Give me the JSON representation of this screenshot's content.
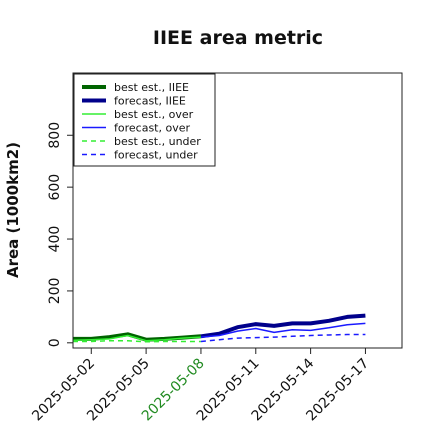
{
  "chart_data": {
    "type": "line",
    "title": "IIEE area metric",
    "ylabel": "Area (1000km2)",
    "xlabel": "",
    "ylim": [
      -20,
      1040
    ],
    "xlim": [
      "2025-05-01",
      "2025-05-19"
    ],
    "yticks": [
      "0",
      "200",
      "400",
      "600",
      "800"
    ],
    "ytick_values": [
      0,
      200,
      400,
      600,
      800
    ],
    "xticks": [
      "2025-05-02",
      "2025-05-05",
      "2025-05-08",
      "2025-05-11",
      "2025-05-14",
      "2025-05-17"
    ],
    "highlight_xtick": "2025-05-08",
    "highlight_color": "#228B22",
    "legend_position": "upper left",
    "grid": false,
    "series": [
      {
        "name": "best est., IIEE",
        "color": "#006400",
        "style": "solid",
        "width": 4,
        "x": [
          "2025-05-01",
          "2025-05-02",
          "2025-05-03",
          "2025-05-04",
          "2025-05-05",
          "2025-05-06",
          "2025-05-07",
          "2025-05-08"
        ],
        "y": [
          15,
          15,
          22,
          33,
          12,
          15,
          20,
          25
        ]
      },
      {
        "name": "forecast, IIEE",
        "color": "#00008B",
        "style": "solid",
        "width": 4,
        "x": [
          "2025-05-08",
          "2025-05-09",
          "2025-05-10",
          "2025-05-11",
          "2025-05-12",
          "2025-05-13",
          "2025-05-14",
          "2025-05-15",
          "2025-05-16",
          "2025-05-17"
        ],
        "y": [
          25,
          35,
          60,
          72,
          65,
          75,
          75,
          85,
          100,
          105
        ]
      },
      {
        "name": "best est., over",
        "color": "#33ee33",
        "style": "solid",
        "width": 1.5,
        "x": [
          "2025-05-01",
          "2025-05-02",
          "2025-05-03",
          "2025-05-04",
          "2025-05-05",
          "2025-05-06",
          "2025-05-07",
          "2025-05-08"
        ],
        "y": [
          10,
          12,
          15,
          28,
          8,
          12,
          18,
          22
        ]
      },
      {
        "name": "forecast, over",
        "color": "#1a1aff",
        "style": "solid",
        "width": 1.5,
        "x": [
          "2025-05-08",
          "2025-05-09",
          "2025-05-10",
          "2025-05-11",
          "2025-05-12",
          "2025-05-13",
          "2025-05-14",
          "2025-05-15",
          "2025-05-16",
          "2025-05-17"
        ],
        "y": [
          22,
          28,
          45,
          55,
          40,
          50,
          48,
          58,
          70,
          75
        ]
      },
      {
        "name": "best est., under",
        "color": "#33ee33",
        "style": "dashed",
        "width": 1.5,
        "x": [
          "2025-05-01",
          "2025-05-02",
          "2025-05-03",
          "2025-05-04",
          "2025-05-05",
          "2025-05-06",
          "2025-05-07",
          "2025-05-08"
        ],
        "y": [
          5,
          5,
          8,
          8,
          4,
          5,
          5,
          5
        ]
      },
      {
        "name": "forecast, under",
        "color": "#1a1aff",
        "style": "dashed",
        "width": 1.5,
        "x": [
          "2025-05-08",
          "2025-05-09",
          "2025-05-10",
          "2025-05-11",
          "2025-05-12",
          "2025-05-13",
          "2025-05-14",
          "2025-05-15",
          "2025-05-16",
          "2025-05-17"
        ],
        "y": [
          5,
          12,
          18,
          20,
          22,
          25,
          28,
          30,
          32,
          32
        ]
      }
    ]
  }
}
